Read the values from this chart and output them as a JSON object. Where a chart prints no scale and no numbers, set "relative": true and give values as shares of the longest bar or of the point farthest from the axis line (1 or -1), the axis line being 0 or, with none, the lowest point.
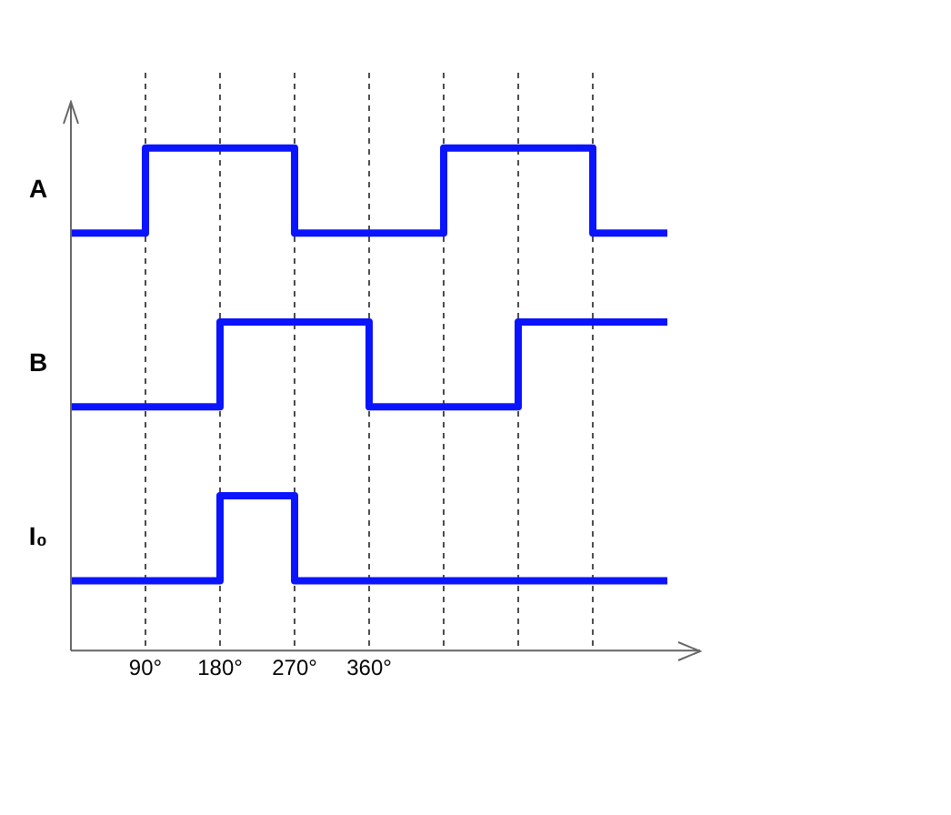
{
  "chart_data": {
    "type": "step",
    "relative": true,
    "line_style": "solid",
    "marker": "none",
    "grid": "x",
    "legend": false,
    "xlim": [
      0,
      720
    ],
    "xticks": [
      {
        "value": 90,
        "label": "90°"
      },
      {
        "value": 180,
        "label": "180°"
      },
      {
        "value": 270,
        "label": "270°"
      },
      {
        "value": 360,
        "label": "360°"
      },
      {
        "value": 450,
        "label": null
      },
      {
        "value": 540,
        "label": null
      },
      {
        "value": 630,
        "label": null
      }
    ],
    "series": [
      {
        "name": "A",
        "color": "#0a14ff",
        "x": [
          0,
          90,
          270,
          450,
          630,
          720
        ],
        "values": [
          0.831,
          1,
          0.831,
          1,
          0.831,
          0.831
        ]
      },
      {
        "name": "B",
        "color": "#0a14ff",
        "x": [
          0,
          180,
          360,
          540,
          720
        ],
        "values": [
          0.485,
          0.654,
          0.485,
          0.654,
          0.654
        ]
      },
      {
        "name": "I₀",
        "color": "#0a14ff",
        "x": [
          0,
          180,
          270,
          720
        ],
        "values": [
          0.139,
          0.308,
          0.139,
          0.139
        ]
      }
    ]
  }
}
